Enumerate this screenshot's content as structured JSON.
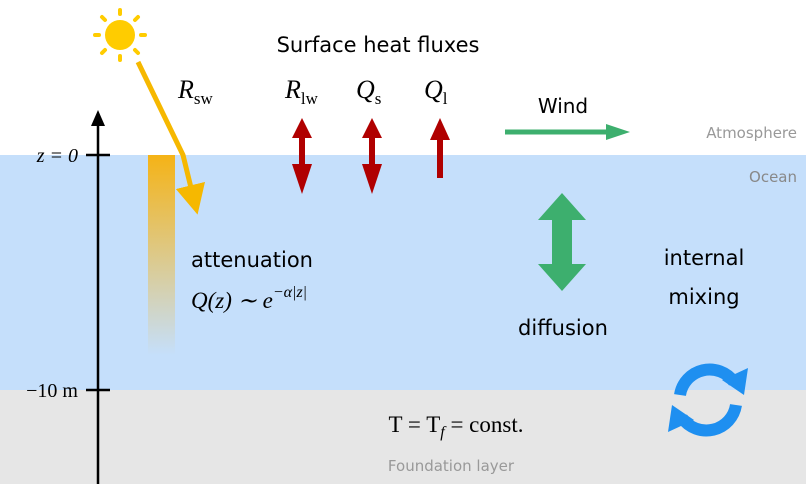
{
  "title": "Surface heat fluxes",
  "fluxes": [
    {
      "base": "R",
      "sub": "sw"
    },
    {
      "base": "R",
      "sub": "lw"
    },
    {
      "base": "Q",
      "sub": "s"
    },
    {
      "base": "Q",
      "sub": "l"
    }
  ],
  "wind": "Wind",
  "regions": {
    "atmosphere": "Atmosphere",
    "ocean": "Ocean",
    "foundation": "Foundation layer"
  },
  "axis": {
    "top": "z = 0",
    "bottom": "−10 m"
  },
  "attenuation": {
    "label": "attenuation",
    "formula_base": "Q(z) ∼ e",
    "formula_sup": "−α|z|"
  },
  "diffusion": "diffusion",
  "mixing": [
    "internal",
    "mixing"
  ],
  "foundation_eq": {
    "pre": "T = T",
    "sub": "f",
    "post": " = const."
  }
}
